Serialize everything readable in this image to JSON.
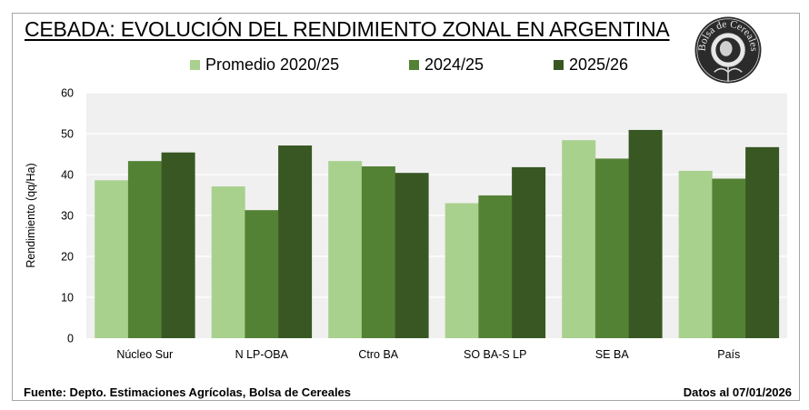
{
  "header": {
    "title": "CEBADA: EVOLUCIÓN DEL RENDIMIENTO ZONAL EN ARGENTINA",
    "logo": {
      "icon": "bolsa-de-cereales-seal-icon",
      "text": "Bolsa de Cereales"
    }
  },
  "footer": {
    "source": "Fuente: Depto. Estimaciones Agrícolas, Bolsa de Cereales",
    "date": "Datos al 07/01/2026"
  },
  "chart_data": {
    "type": "bar",
    "title": "CEBADA: EVOLUCIÓN DEL RENDIMIENTO ZONAL EN ARGENTINA",
    "xlabel": "",
    "ylabel": "Rendimiento (qq/Ha)",
    "ylim": [
      0,
      60
    ],
    "yticks": [
      0,
      10,
      20,
      30,
      40,
      50,
      60
    ],
    "grid": true,
    "legend_position": "top",
    "categories": [
      "Núcleo Sur",
      "N LP-OBA",
      "Ctro BA",
      "SO BA-S LP",
      "SE BA",
      "País"
    ],
    "series": [
      {
        "name": "Promedio 2020/25",
        "color": "#a9d18e",
        "values": [
          38.6,
          37.1,
          43.3,
          33.0,
          48.4,
          40.9
        ]
      },
      {
        "name": "2024/25",
        "color": "#548235",
        "values": [
          43.3,
          31.3,
          42.0,
          34.9,
          43.9,
          39.0
        ]
      },
      {
        "name": "2025/26",
        "color": "#385723",
        "values": [
          45.4,
          47.1,
          40.4,
          41.8,
          50.9,
          46.7
        ]
      }
    ]
  }
}
